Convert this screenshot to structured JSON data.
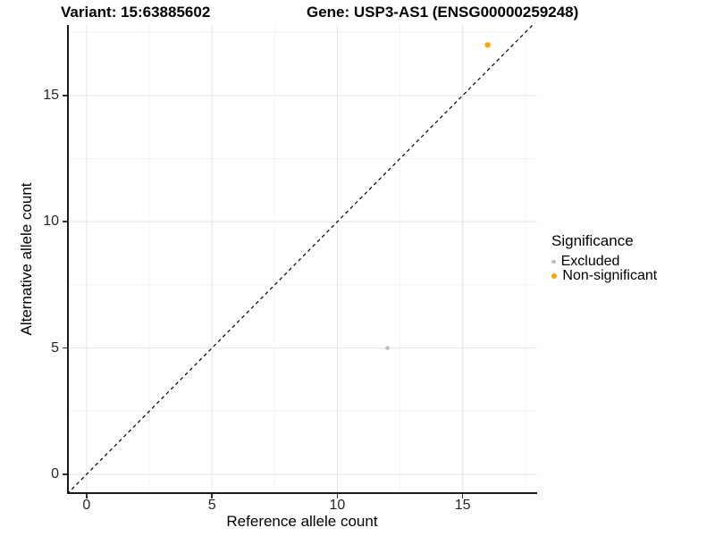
{
  "header": {
    "variant_title": "Variant: 15:63885602",
    "gene_title": "Gene: USP3-AS1 (ENSG00000259248)"
  },
  "chart_data": {
    "type": "scatter",
    "title": "Variant: 15:63885602 / Gene: USP3-AS1 (ENSG00000259248)",
    "xlabel": "Reference allele count",
    "ylabel": "Alternative allele count",
    "xlim": [
      -0.78,
      17.97
    ],
    "ylim": [
      -0.78,
      17.79
    ],
    "x_ticks": [
      0,
      5,
      10,
      15
    ],
    "y_ticks": [
      0,
      5,
      10,
      15
    ],
    "x_minor_ticks": [
      2.5,
      7.5,
      12.5,
      17.5
    ],
    "y_minor_ticks": [
      2.5,
      7.5,
      12.5,
      17.5
    ],
    "grid": "major+minor, light gray on white",
    "identity_line": {
      "style": "dashed",
      "color": "#000000",
      "from": -0.78,
      "to": 17.79
    },
    "series": [
      {
        "name": "Excluded",
        "color": "#BEBEBE",
        "point_radius": 2.3,
        "points": [
          {
            "x": 12,
            "y": 5
          }
        ]
      },
      {
        "name": "Non-significant",
        "color": "#FFA500",
        "point_radius": 3.2,
        "points": [
          {
            "x": 16,
            "y": 17
          }
        ]
      }
    ],
    "legend": {
      "title": "Significance",
      "position": "right",
      "entries": [
        "Excluded",
        "Non-significant"
      ]
    }
  },
  "colors": {
    "excluded_point": "#BEBEBE",
    "non_significant_point": "#FFA500",
    "grid_major": "#E5E5E5",
    "grid_minor": "#F3F3F3",
    "axis_line": "#1A1A1A",
    "background": "#FFFFFF"
  }
}
